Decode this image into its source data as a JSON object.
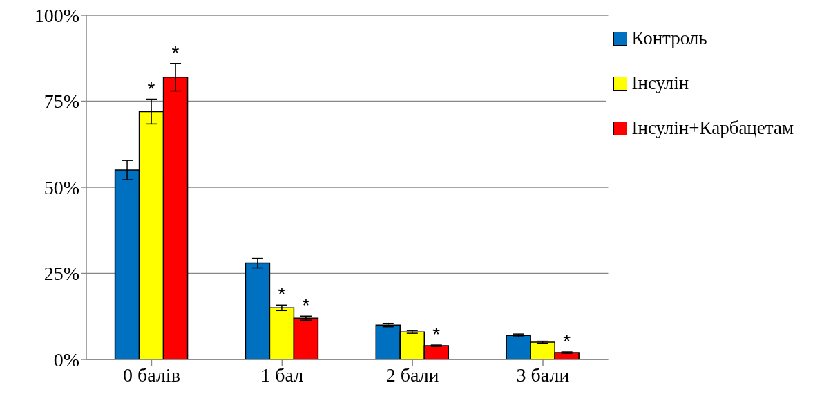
{
  "chart_data": {
    "type": "bar",
    "categories": [
      "0 балів",
      "1 бал",
      "2 бали",
      "3 бали"
    ],
    "series": [
      {
        "name": "Контроль",
        "color": "#0070c0",
        "values": [
          55,
          28,
          10,
          7
        ],
        "errors": [
          2.8,
          1.4,
          0.5,
          0.4
        ],
        "value_labels": [
          null,
          null,
          null,
          null
        ]
      },
      {
        "name": "Інсулін",
        "color": "#ffff00",
        "values": [
          72,
          15,
          8,
          5
        ],
        "errors": [
          3.6,
          0.8,
          0.4,
          0.3
        ],
        "value_labels": [
          "*",
          "*",
          null,
          null
        ]
      },
      {
        "name": "Інсулін+Карбацетам",
        "color": "#ff0000",
        "values": [
          82,
          12,
          4,
          2
        ],
        "errors": [
          4,
          0.6,
          0.2,
          0.2
        ],
        "value_labels": [
          "*",
          "*",
          "*",
          "*"
        ]
      }
    ],
    "ylim": [
      0,
      100
    ],
    "yticks": [
      {
        "value": 0,
        "label": "0%"
      },
      {
        "value": 25,
        "label": "25%"
      },
      {
        "value": 50,
        "label": "50%"
      },
      {
        "value": 75,
        "label": "75%"
      },
      {
        "value": 100,
        "label": "100%"
      }
    ],
    "grid": "y",
    "legend": "top right"
  }
}
